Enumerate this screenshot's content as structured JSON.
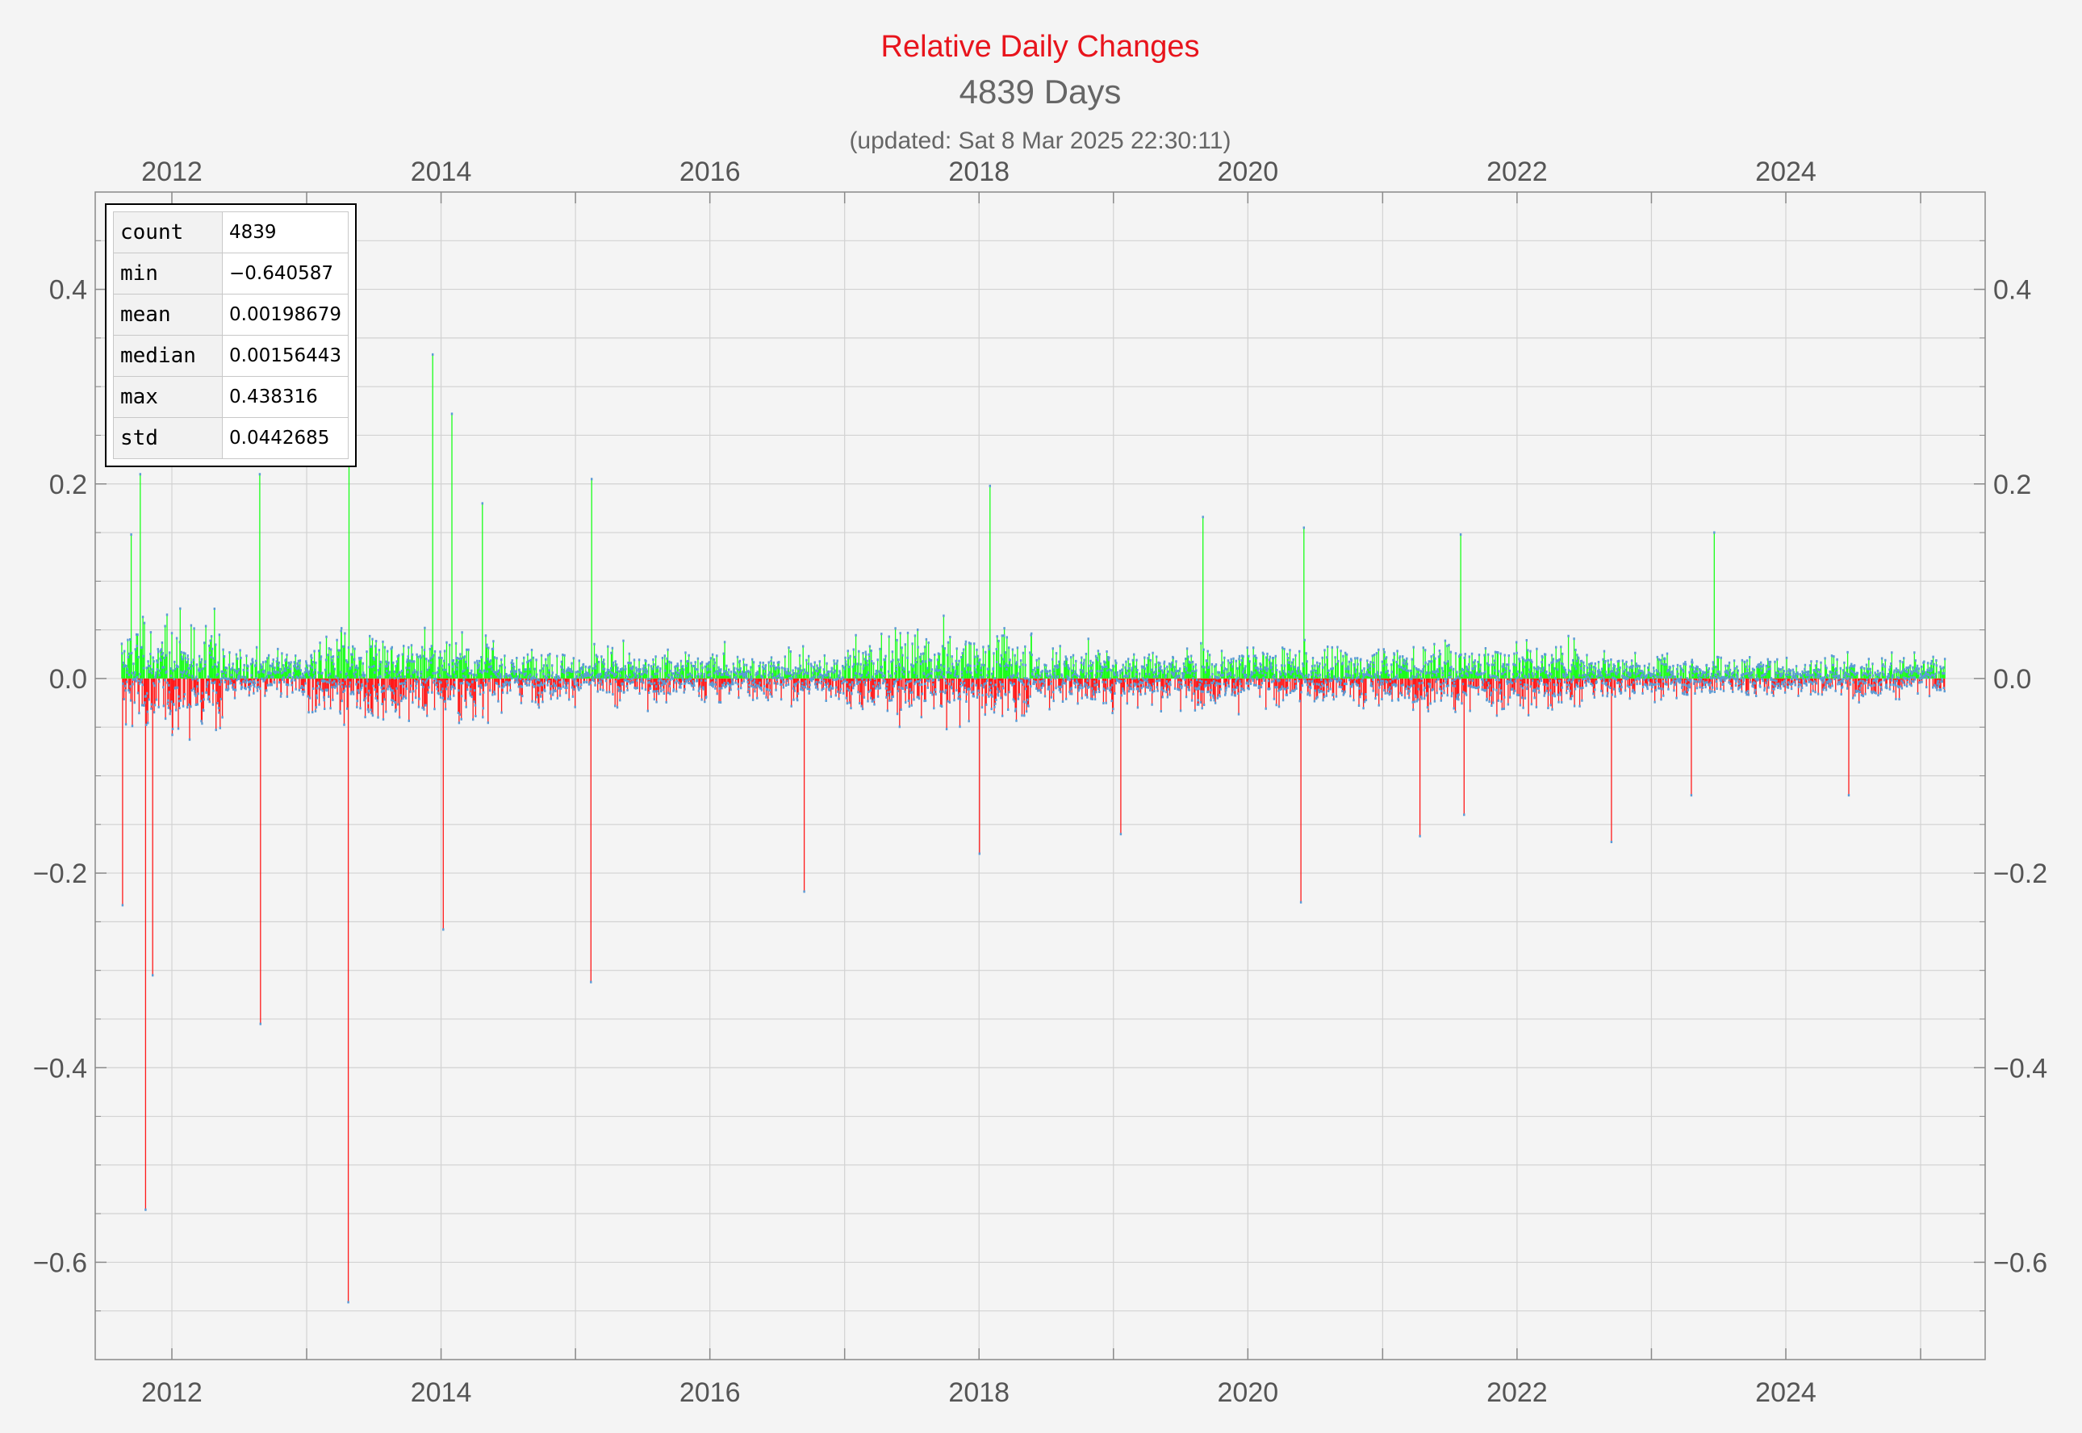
{
  "title": "Relative Daily Changes",
  "subtitle": "4839 Days",
  "updated": "(updated: Sat 8 Mar 2025 22:30:11)",
  "colors": {
    "title": "#e8141c",
    "positive": "#1aff1a",
    "negative": "#ff1a1a",
    "points": "#5b9bd5",
    "background": "#f4f4f4",
    "grid": "#d2d2d2"
  },
  "stats": [
    {
      "key": "count",
      "value": "4839"
    },
    {
      "key": "min",
      "value": "−0.640587"
    },
    {
      "key": "mean",
      "value": "0.00198679"
    },
    {
      "key": "median",
      "value": "0.00156443"
    },
    {
      "key": "max",
      "value": "0.438316"
    },
    {
      "key": "std",
      "value": "0.0442685"
    }
  ],
  "chart_data": {
    "type": "bar",
    "title": "Relative Daily Changes",
    "subtitle": "4839 Days",
    "x_range": [
      "2011-08-18",
      "2025-03-08"
    ],
    "ylim": [
      -0.7,
      0.5
    ],
    "x_ticks": [
      "2012",
      "2014",
      "2016",
      "2018",
      "2020",
      "2022",
      "2024"
    ],
    "y_ticks": [
      "−0.6",
      "−0.4",
      "−0.2",
      "0.0",
      "0.2",
      "0.4"
    ],
    "grid": true,
    "axes_mirrored": true,
    "legend": "none",
    "count": 4839,
    "min": -0.640587,
    "max": 0.438316,
    "mean": 0.00198679,
    "median": 0.00156443,
    "std": 0.0442685,
    "notable_points": [
      {
        "date": "2011-09-12",
        "value": 0.148
      },
      {
        "date": "2011-10-20",
        "value": -0.546
      },
      {
        "date": "2011-11-08",
        "value": -0.305
      },
      {
        "date": "2011-10-06",
        "value": 0.21
      },
      {
        "date": "2011-08-20",
        "value": -0.233
      },
      {
        "date": "2012-08-20",
        "value": -0.355
      },
      {
        "date": "2012-08-18",
        "value": 0.21
      },
      {
        "date": "2013-04-10",
        "value": -0.641
      },
      {
        "date": "2013-04-12",
        "value": 0.438
      },
      {
        "date": "2013-11-20",
        "value": 0.333
      },
      {
        "date": "2013-12-18",
        "value": -0.258
      },
      {
        "date": "2014-01-10",
        "value": 0.272
      },
      {
        "date": "2014-04-01",
        "value": 0.18
      },
      {
        "date": "2015-01-14",
        "value": -0.312
      },
      {
        "date": "2015-01-16",
        "value": 0.205
      },
      {
        "date": "2016-08-02",
        "value": -0.219
      },
      {
        "date": "2017-11-10",
        "value": -0.18
      },
      {
        "date": "2017-12-08",
        "value": 0.198
      },
      {
        "date": "2018-11-20",
        "value": -0.16
      },
      {
        "date": "2019-06-26",
        "value": 0.166
      },
      {
        "date": "2020-03-12",
        "value": -0.23
      },
      {
        "date": "2020-03-20",
        "value": 0.155
      },
      {
        "date": "2021-01-22",
        "value": -0.162
      },
      {
        "date": "2021-05-19",
        "value": -0.14
      },
      {
        "date": "2021-05-10",
        "value": 0.148
      },
      {
        "date": "2022-06-14",
        "value": -0.168
      },
      {
        "date": "2023-03-14",
        "value": 0.15
      },
      {
        "date": "2023-01-12",
        "value": -0.12
      },
      {
        "date": "2024-03-05",
        "value": -0.12
      },
      {
        "date": "2025-02-28",
        "value": 0.09
      }
    ]
  }
}
